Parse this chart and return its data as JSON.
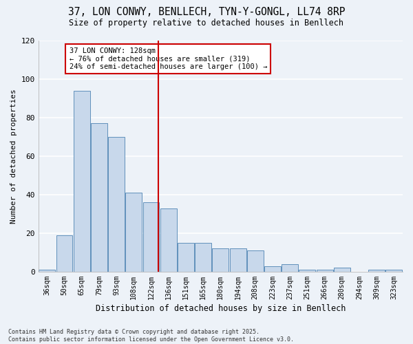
{
  "title_line1": "37, LON CONWY, BENLLECH, TYN-Y-GONGL, LL74 8RP",
  "title_line2": "Size of property relative to detached houses in Benllech",
  "xlabel": "Distribution of detached houses by size in Benllech",
  "ylabel": "Number of detached properties",
  "categories": [
    "36sqm",
    "50sqm",
    "65sqm",
    "79sqm",
    "93sqm",
    "108sqm",
    "122sqm",
    "136sqm",
    "151sqm",
    "165sqm",
    "180sqm",
    "194sqm",
    "208sqm",
    "223sqm",
    "237sqm",
    "251sqm",
    "266sqm",
    "280sqm",
    "294sqm",
    "309sqm",
    "323sqm"
  ],
  "values": [
    1,
    19,
    94,
    77,
    70,
    41,
    36,
    33,
    15,
    15,
    12,
    12,
    11,
    3,
    4,
    1,
    1,
    2,
    0,
    1,
    1
  ],
  "bar_color": "#c8d8eb",
  "bar_edge_color": "#6090bb",
  "annotation_box_edge": "#cc0000",
  "vline_color": "#cc0000",
  "background_color": "#edf2f8",
  "grid_color": "#ffffff",
  "ylim": [
    0,
    120
  ],
  "yticks": [
    0,
    20,
    40,
    60,
    80,
    100,
    120
  ],
  "footer_line1": "Contains HM Land Registry data © Crown copyright and database right 2025.",
  "footer_line2": "Contains public sector information licensed under the Open Government Licence v3.0.",
  "annot_line1": "37 LON CONWY: 128sqm",
  "annot_line2": "← 76% of detached houses are smaller (319)",
  "annot_line3": "24% of semi-detached houses are larger (100) →"
}
